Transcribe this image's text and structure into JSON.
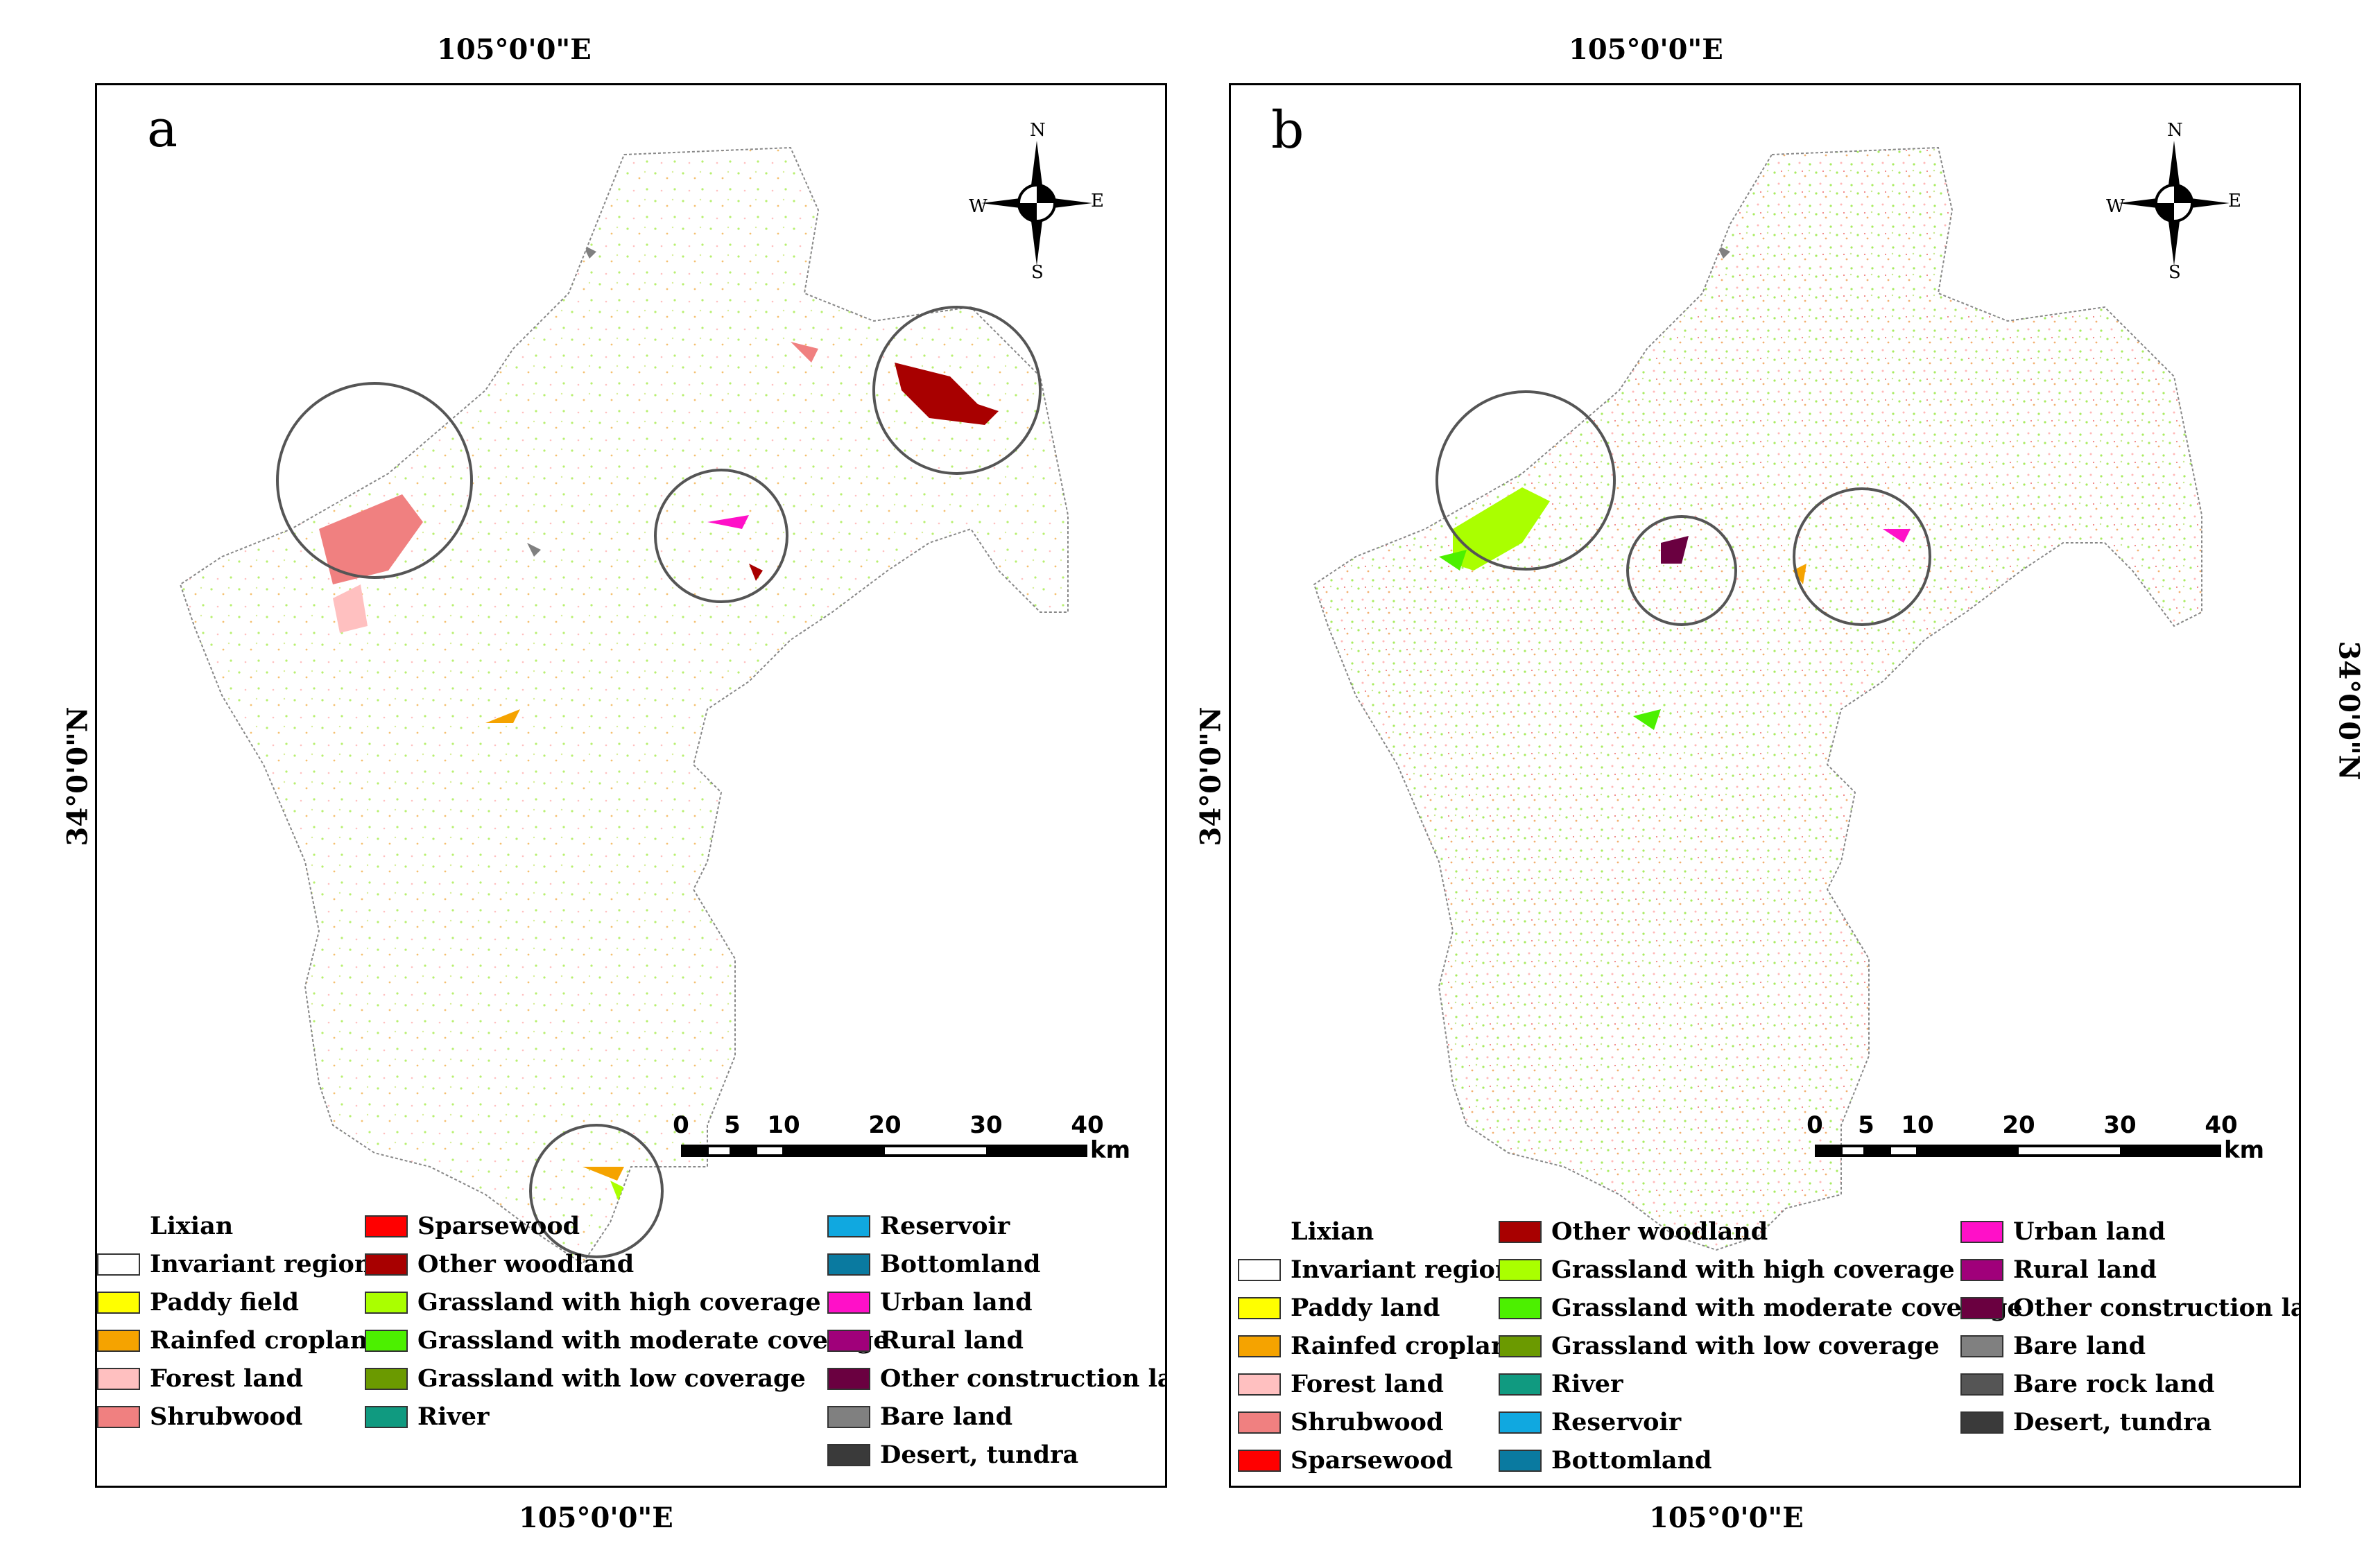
{
  "coords": {
    "top_lon_a": "105°0'0\"E",
    "top_lon_b": "105°0'0\"E",
    "bottom_lon_a": "105°0'0\"E",
    "bottom_lon_b": "105°0'0\"E",
    "lat_left": "34°0'0\"N",
    "lat_middle": "34°0'0\"N",
    "lat_right": "34°0'0\"N"
  },
  "panel_a": {
    "letter": "a",
    "compass": {
      "n": "N",
      "s": "S",
      "e": "E",
      "w": "W"
    },
    "scale": {
      "ticks": [
        "0",
        "5",
        "10",
        "20",
        "30",
        "40"
      ],
      "unit": "km"
    },
    "legend": [
      [
        {
          "label": "Lixian",
          "color": "#ffffff",
          "blank": true
        },
        {
          "label": "Invariant region",
          "color": "#ffffff"
        },
        {
          "label": "Paddy field",
          "color": "#ffff00"
        },
        {
          "label": "Rainfed cropland",
          "color": "#f5a300"
        },
        {
          "label": "Forest land",
          "color": "#ffc0c0"
        },
        {
          "label": "Shrubwood",
          "color": "#f08080"
        }
      ],
      [
        {
          "label": "Sparsewood",
          "color": "#ff0000"
        },
        {
          "label": "Other woodland",
          "color": "#a80000"
        },
        {
          "label": "Grassland with high coverage",
          "color": "#aaff00"
        },
        {
          "label": "Grassland with moderate coverage",
          "color": "#4cf000"
        },
        {
          "label": "Grassland with low coverage",
          "color": "#6b9a00"
        },
        {
          "label": "River",
          "color": "#109a80"
        }
      ],
      [
        {
          "label": "Reservoir",
          "color": "#10a8e0"
        },
        {
          "label": "Bottomland",
          "color": "#0a7aa0"
        },
        {
          "label": "Urban land",
          "color": "#ff10c8"
        },
        {
          "label": "Rural land",
          "color": "#a0007a"
        },
        {
          "label": "Other construction land",
          "color": "#6a0040"
        },
        {
          "label": "Bare land",
          "color": "#808080"
        },
        {
          "label": "Desert, tundra",
          "color": "#3a3a3a"
        }
      ]
    ]
  },
  "panel_b": {
    "letter": "b",
    "compass": {
      "n": "N",
      "s": "S",
      "e": "E",
      "w": "W"
    },
    "scale": {
      "ticks": [
        "0",
        "5",
        "10",
        "20",
        "30",
        "40"
      ],
      "unit": "km"
    },
    "legend": [
      [
        {
          "label": "Lixian",
          "color": "#ffffff",
          "blank": true
        },
        {
          "label": "Invariant region",
          "color": "#ffffff"
        },
        {
          "label": "Paddy land",
          "color": "#ffff00"
        },
        {
          "label": "Rainfed cropland",
          "color": "#f5a300"
        },
        {
          "label": "Forest land",
          "color": "#ffc0c0"
        },
        {
          "label": "Shrubwood",
          "color": "#f08080"
        },
        {
          "label": "Sparsewood",
          "color": "#ff0000"
        }
      ],
      [
        {
          "label": "Other woodland",
          "color": "#a80000"
        },
        {
          "label": "Grassland with high coverage",
          "color": "#aaff00"
        },
        {
          "label": "Grassland with moderate coverage",
          "color": "#4cf000"
        },
        {
          "label": "Grassland with low coverage",
          "color": "#6b9a00"
        },
        {
          "label": "River",
          "color": "#109a80"
        },
        {
          "label": "Reservoir",
          "color": "#10a8e0"
        },
        {
          "label": "Bottomland",
          "color": "#0a7aa0"
        }
      ],
      [
        {
          "label": "Urban land",
          "color": "#ff10c8"
        },
        {
          "label": "Rural land",
          "color": "#a0007a"
        },
        {
          "label": "Other construction land",
          "color": "#6a0040"
        },
        {
          "label": "Bare land",
          "color": "#808080"
        },
        {
          "label": "Bare rock land",
          "color": "#555555"
        },
        {
          "label": "Desert, tundra",
          "color": "#3a3a3a"
        }
      ]
    ]
  }
}
